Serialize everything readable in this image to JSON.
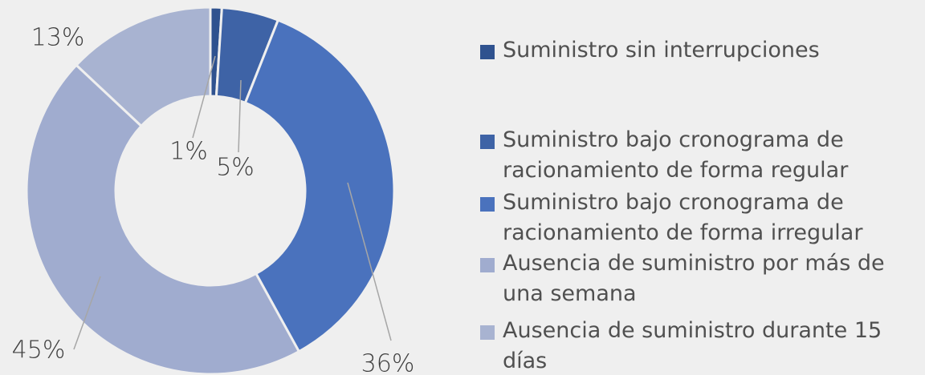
{
  "chart_data": {
    "type": "pie",
    "categories": [
      "Suministro sin interrupciones",
      "Suministro bajo cronograma de racionamiento de forma regular",
      "Suministro bajo cronograma de racionamiento de forma irregular",
      "Ausencia de suministro por más de una semana",
      "Ausencia de suministro durante 15 días"
    ],
    "values": [
      1,
      5,
      36,
      45,
      13
    ],
    "value_labels": [
      "1%",
      "5%",
      "36%",
      "45%",
      "13%"
    ],
    "colors": [
      "#2f528f",
      "#3e63a6",
      "#4a72bd",
      "#a0accf",
      "#a8b3d1"
    ],
    "legend": "right"
  }
}
